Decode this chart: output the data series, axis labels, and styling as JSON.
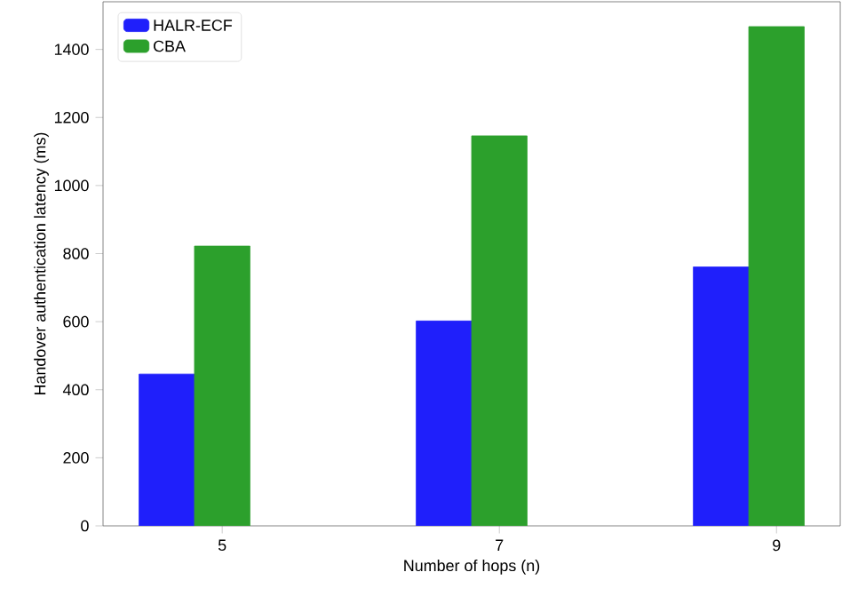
{
  "chart_data": {
    "type": "bar",
    "xlabel": "Number of hops (n)",
    "ylabel": "Handover authentication latency (ms)",
    "categories": [
      "5",
      "7",
      "9"
    ],
    "series": [
      {
        "name": "HALR-ECF",
        "color": "#1f1ffb",
        "values": [
          446,
          602,
          761
        ]
      },
      {
        "name": "CBA",
        "color": "#2ca02c",
        "values": [
          822,
          1146,
          1467
        ]
      }
    ],
    "ylim": [
      0,
      1540
    ],
    "yticks": [
      0,
      200,
      400,
      600,
      800,
      1000,
      1200,
      1400
    ],
    "legend": "top left",
    "grid": false
  }
}
